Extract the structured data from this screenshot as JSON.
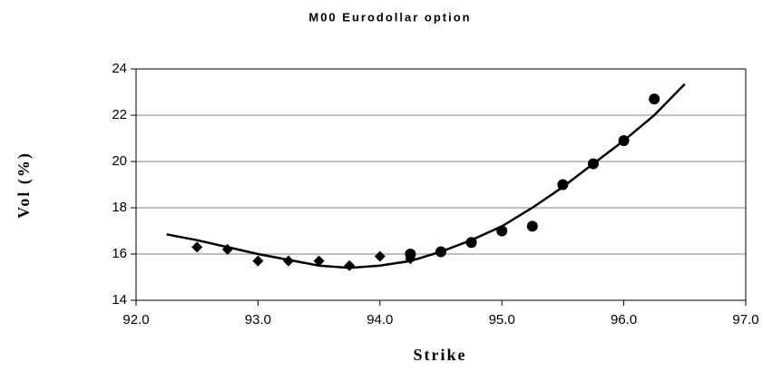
{
  "chart_data": {
    "type": "scatter",
    "title": "M00 Eurodollar option",
    "xlabel": "Strike",
    "ylabel": "Vol (%)",
    "xlim": [
      92,
      97
    ],
    "ylim": [
      14,
      24
    ],
    "xticks": [
      {
        "value": 92,
        "label": "92.0"
      },
      {
        "value": 93,
        "label": "93.0"
      },
      {
        "value": 94,
        "label": "94.0"
      },
      {
        "value": 95,
        "label": "95.0"
      },
      {
        "value": 96,
        "label": "96.0"
      },
      {
        "value": 97,
        "label": "97.0"
      }
    ],
    "yticks": [
      14,
      16,
      18,
      20,
      22,
      24
    ],
    "grid": true,
    "series": [
      {
        "marker": "diamond",
        "color": "#000000",
        "x": [
          92.5,
          92.75,
          93.0,
          93.25,
          93.5,
          93.75,
          94.0,
          94.25
        ],
        "values": [
          16.3,
          16.2,
          15.7,
          15.7,
          15.7,
          15.5,
          15.9,
          15.8
        ]
      },
      {
        "marker": "circle",
        "color": "#000000",
        "x": [
          94.25,
          94.5,
          94.75,
          95.0,
          95.25,
          95.5,
          95.75,
          96.0,
          96.25
        ],
        "values": [
          16.0,
          16.1,
          16.5,
          17.0,
          17.2,
          19.0,
          19.9,
          20.9,
          22.7
        ]
      },
      {
        "marker": "line",
        "color": "#000000",
        "x": [
          92.25,
          92.5,
          92.75,
          93.0,
          93.25,
          93.5,
          93.75,
          94.0,
          94.25,
          94.5,
          94.75,
          95.0,
          95.25,
          95.5,
          95.75,
          96.0,
          96.25,
          96.5
        ],
        "values": [
          16.85,
          16.6,
          16.3,
          16.0,
          15.75,
          15.5,
          15.4,
          15.5,
          15.7,
          16.1,
          16.6,
          17.2,
          18.0,
          18.9,
          19.9,
          20.9,
          22.0,
          23.35
        ]
      }
    ]
  }
}
